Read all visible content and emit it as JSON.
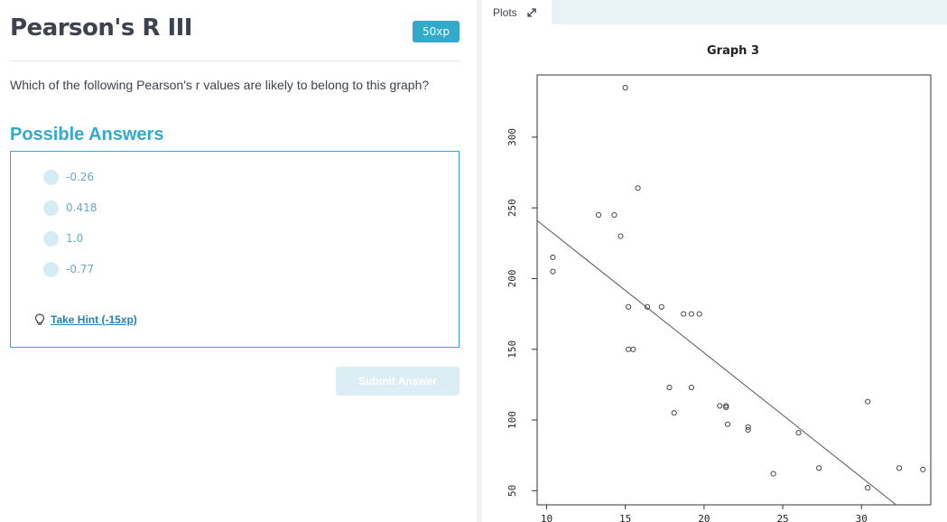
{
  "exercise": {
    "title": "Pearson's R III",
    "xp_badge": "50xp",
    "question": "Which of the following Pearson's r values are likely to belong to this graph?",
    "answers_heading": "Possible Answers",
    "options": [
      {
        "label": "-0.26"
      },
      {
        "label": "0.418"
      },
      {
        "label": "1.0"
      },
      {
        "label": "-0.77"
      }
    ],
    "hint_label": "Take Hint (-15xp)",
    "submit_label": "Submit Answer",
    "hint_icon": "lightbulb-icon"
  },
  "plots": {
    "tab_label": "Plots",
    "expand_icon": "expand-icon"
  },
  "chart_data": {
    "type": "scatter",
    "title": "Graph 3",
    "xlabel": "",
    "ylabel": "",
    "xlim": [
      9.4,
      34.4
    ],
    "ylim": [
      40,
      344
    ],
    "x_ticks": [
      10,
      15,
      20,
      25,
      30
    ],
    "y_ticks": [
      50,
      100,
      150,
      200,
      250,
      300
    ],
    "grid": false,
    "points": [
      {
        "x": 10.4,
        "y": 205
      },
      {
        "x": 10.4,
        "y": 215
      },
      {
        "x": 13.3,
        "y": 245
      },
      {
        "x": 14.3,
        "y": 245
      },
      {
        "x": 14.7,
        "y": 230
      },
      {
        "x": 15.0,
        "y": 335
      },
      {
        "x": 15.2,
        "y": 180
      },
      {
        "x": 15.2,
        "y": 150
      },
      {
        "x": 15.5,
        "y": 150
      },
      {
        "x": 15.8,
        "y": 264
      },
      {
        "x": 16.4,
        "y": 180
      },
      {
        "x": 17.3,
        "y": 180
      },
      {
        "x": 17.8,
        "y": 123
      },
      {
        "x": 18.1,
        "y": 105
      },
      {
        "x": 18.7,
        "y": 175
      },
      {
        "x": 19.2,
        "y": 175
      },
      {
        "x": 19.2,
        "y": 123
      },
      {
        "x": 19.7,
        "y": 175
      },
      {
        "x": 21.0,
        "y": 110
      },
      {
        "x": 21.4,
        "y": 110
      },
      {
        "x": 21.4,
        "y": 109
      },
      {
        "x": 21.5,
        "y": 97
      },
      {
        "x": 22.8,
        "y": 95
      },
      {
        "x": 22.8,
        "y": 93
      },
      {
        "x": 24.4,
        "y": 62
      },
      {
        "x": 26.0,
        "y": 91
      },
      {
        "x": 27.3,
        "y": 66
      },
      {
        "x": 30.4,
        "y": 52
      },
      {
        "x": 30.4,
        "y": 113
      },
      {
        "x": 32.4,
        "y": 66
      },
      {
        "x": 33.9,
        "y": 65
      }
    ],
    "regression_line": {
      "x1": 9.4,
      "y1": 241,
      "x2": 32.2,
      "y2": 40
    },
    "point_color": "#333333",
    "line_color": "#555555"
  }
}
